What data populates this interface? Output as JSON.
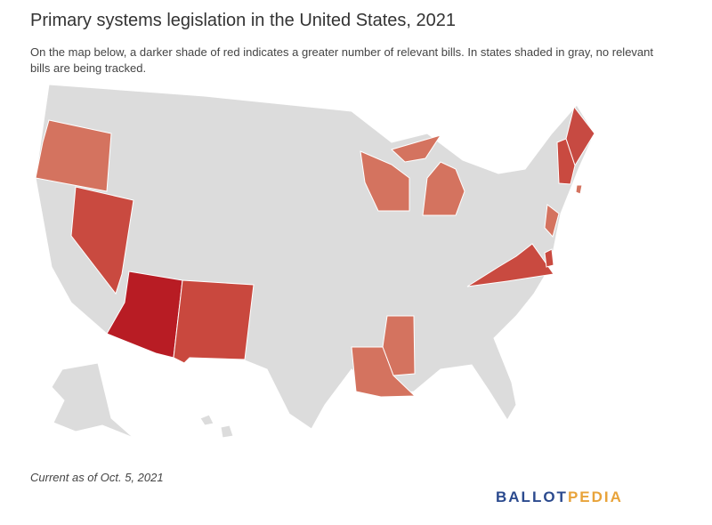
{
  "header": {
    "title": "Primary systems legislation in the United States, 2021",
    "subtitle": "On the map below, a darker shade of red indicates a greater number of relevant bills. In states shaded in gray, no relevant bills are being tracked."
  },
  "footer": {
    "note": "Current as of Oct. 5, 2021",
    "logo_left": "BALLOT",
    "logo_right": "PEDIA"
  }
}
